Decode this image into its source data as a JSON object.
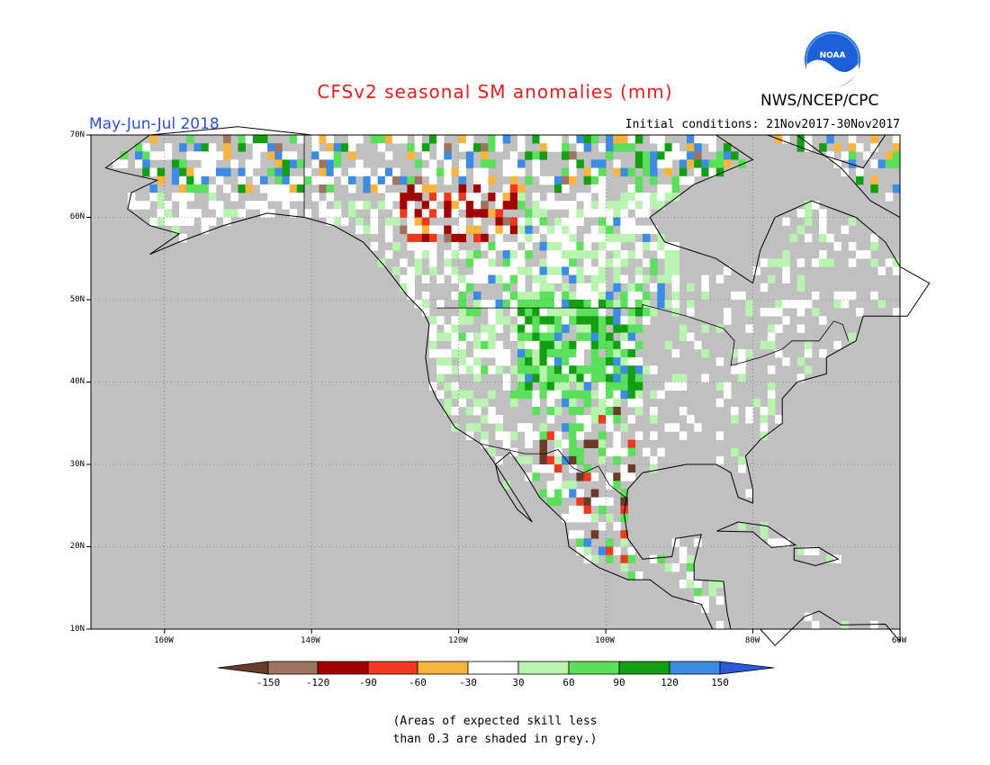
{
  "title": "CFSv2 seasonal SM anomalies (mm)",
  "agency": "NWS/NCEP/CPC",
  "logo_text": "NOAA",
  "season": "May-Jun-Jul 2018",
  "initial_conditions": "Initial conditions: 21Nov2017-30Nov2017",
  "latitude_labels": [
    "70N",
    "60N",
    "50N",
    "40N",
    "30N",
    "20N",
    "10N"
  ],
  "longitude_labels": [
    "160W",
    "140W",
    "120W",
    "100W",
    "80W",
    "60W"
  ],
  "colorbar": {
    "labels": [
      "-150",
      "-120",
      "-90",
      "-60",
      "-30",
      "30",
      "60",
      "90",
      "120",
      "150"
    ],
    "colors": [
      "#6b3b2a",
      "#9e7460",
      "#a00000",
      "#f0381e",
      "#f8b43c",
      "#ffffff",
      "#b8f4b0",
      "#5ae05a",
      "#12a012",
      "#3c8ce6",
      "#2a5adc"
    ]
  },
  "map_colors": {
    "grey": "#c0c0c0",
    "land_white": "#ffffff"
  },
  "note": [
    "(Areas of expected skill less",
    "than 0.3 are shaded in grey.)"
  ]
}
